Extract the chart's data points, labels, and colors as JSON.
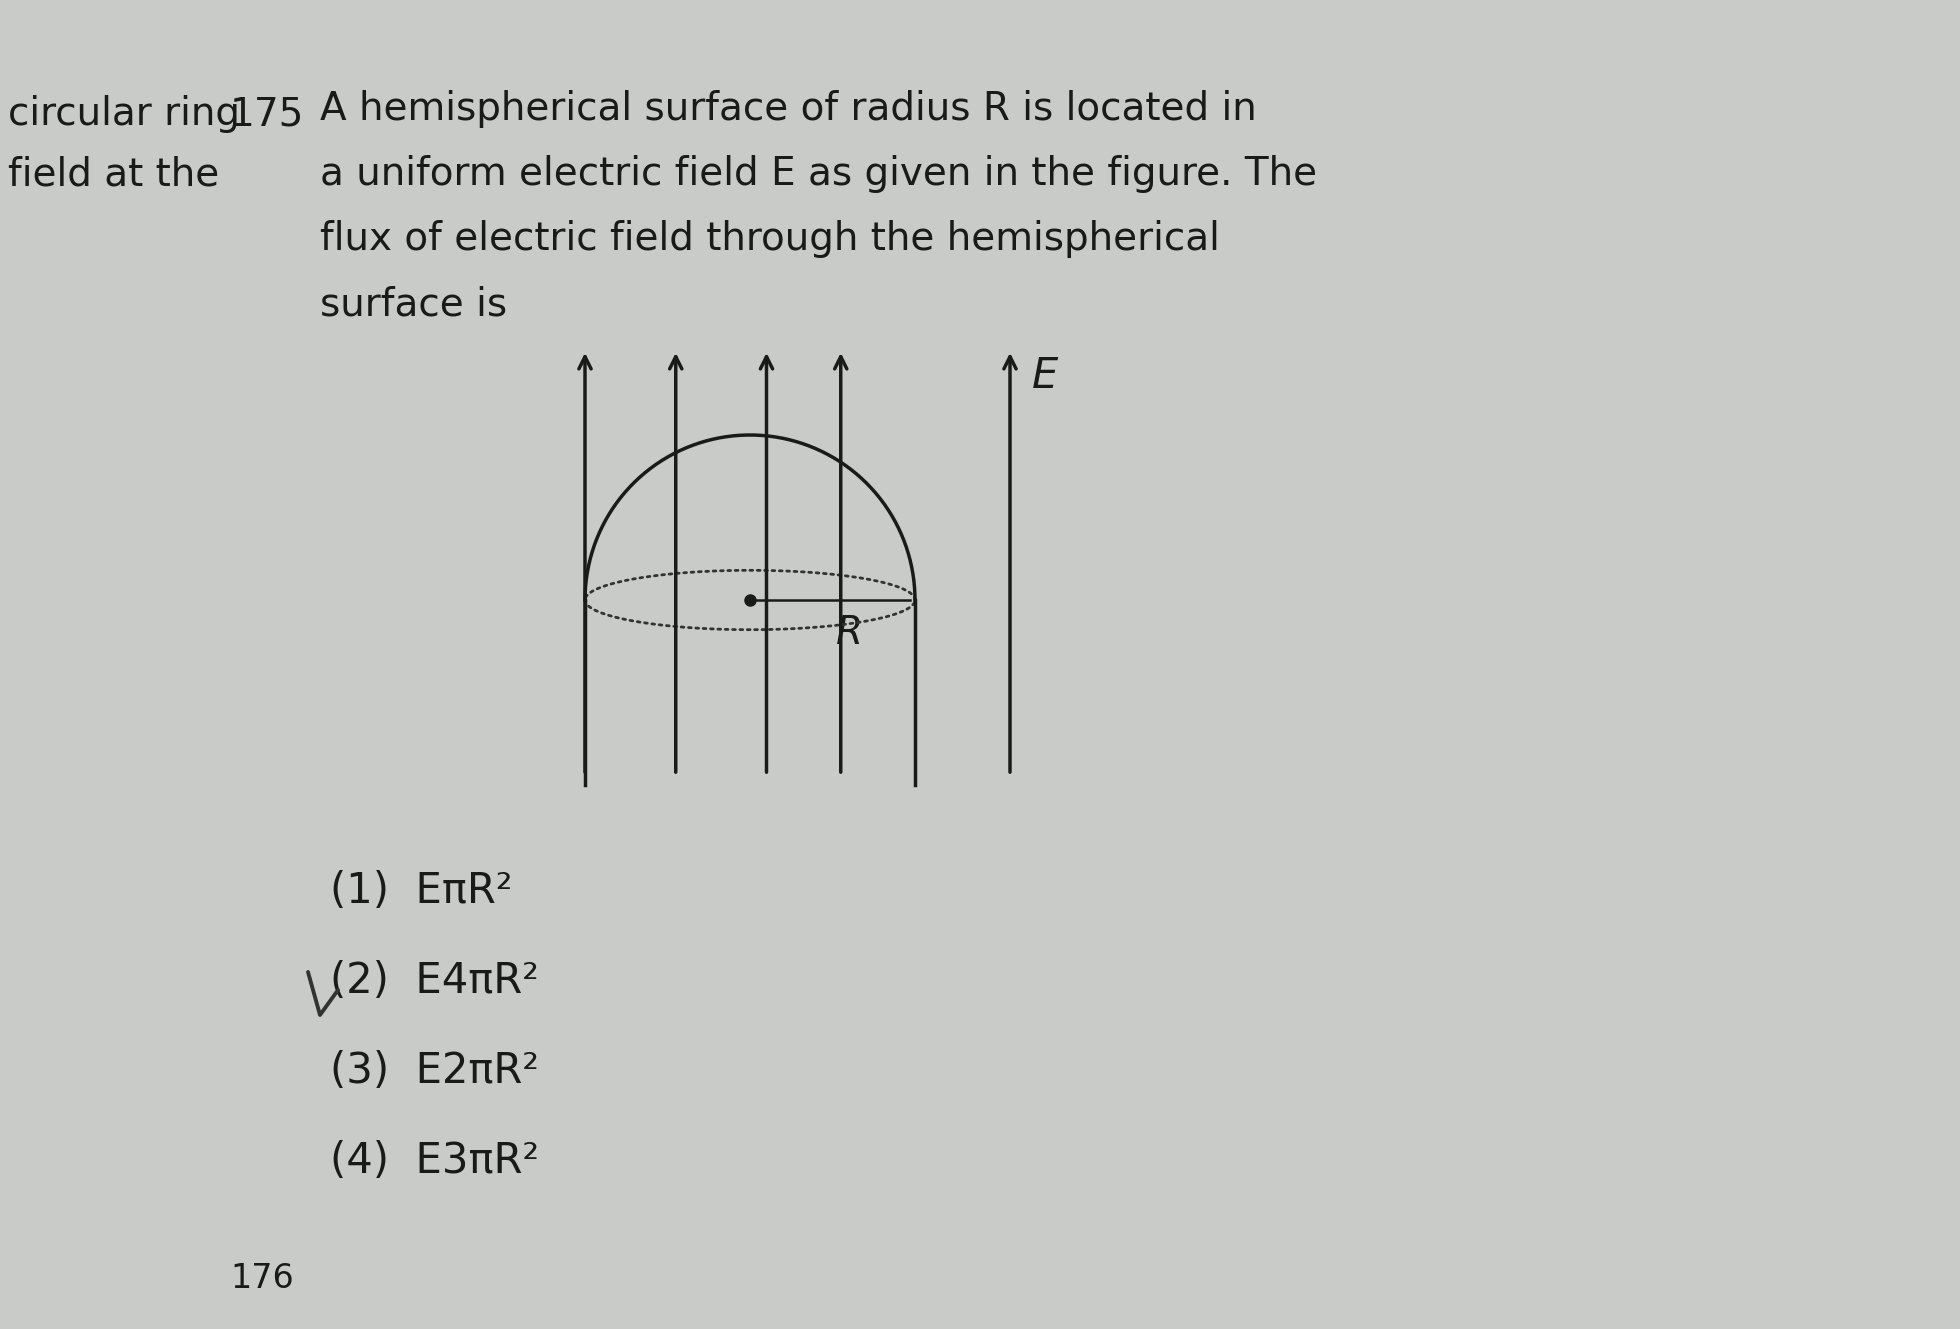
{
  "background_color": "#c8cbc8",
  "text_color": "#1a1a1a",
  "left_text_line1": "circular ring",
  "left_text_line2": "field at the",
  "problem_number": "175",
  "problem_text_line1": "A hemispherical surface of radius R is located in",
  "problem_text_line2": "a uniform electric field E as given in the figure. The",
  "problem_text_line3": "flux of electric field through the hemispherical",
  "problem_text_line4": "surface is",
  "options": [
    "(1)  EπR²",
    "(2)  E4πR²",
    "(3)  E2πR²",
    "(4)  E3πR²"
  ],
  "arrow_color": "#1a1a1a",
  "dome_color": "#1a1a1a",
  "dot_color": "#1a1a1a",
  "dotted_line_color": "#333333",
  "page_bottom": "176"
}
